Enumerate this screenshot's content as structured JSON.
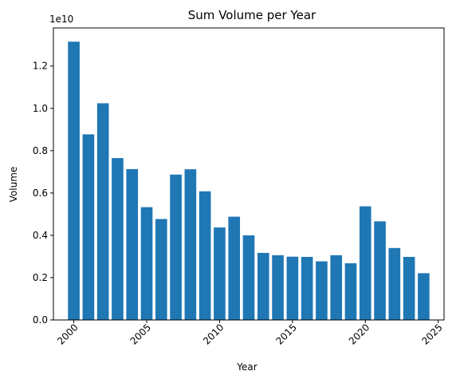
{
  "chart_data": {
    "type": "bar",
    "title": "Sum Volume per Year",
    "xlabel": "Year",
    "ylabel": "Volume",
    "y_scale_label": "1e10",
    "x": [
      2000,
      2001,
      2002,
      2003,
      2004,
      2005,
      2006,
      2007,
      2008,
      2009,
      2010,
      2011,
      2012,
      2013,
      2014,
      2015,
      2016,
      2017,
      2018,
      2019,
      2020,
      2021,
      2022,
      2023,
      2024
    ],
    "values": [
      13.15,
      8.77,
      10.24,
      7.65,
      7.13,
      5.33,
      4.77,
      6.87,
      7.12,
      6.08,
      4.37,
      4.88,
      4.0,
      3.17,
      3.06,
      2.99,
      2.98,
      2.77,
      3.06,
      2.68,
      5.37,
      4.66,
      3.4,
      2.98,
      2.21
    ],
    "values_unit": "x 1e9",
    "xlim": [
      1998.6,
      2025.4
    ],
    "ylim": [
      0,
      1.38
    ],
    "x_ticks": [
      2000,
      2005,
      2010,
      2015,
      2020,
      2025
    ],
    "y_ticks": [
      "0.0",
      "0.2",
      "0.4",
      "0.6",
      "0.8",
      "1.0",
      "1.2"
    ],
    "y_tick_values": [
      0.0,
      0.2,
      0.4,
      0.6,
      0.8,
      1.0,
      1.2
    ],
    "bar_color": "#1f77b4",
    "grid": false,
    "legend": "none"
  }
}
